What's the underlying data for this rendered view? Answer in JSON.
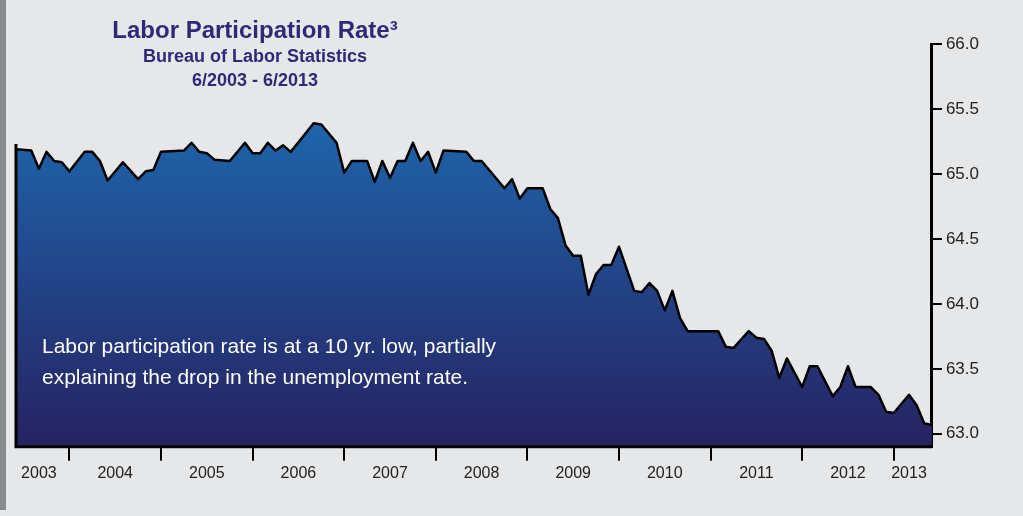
{
  "chart_data": {
    "type": "area",
    "title": "Labor Participation Rate³",
    "subtitle": "Bureau of Labor Statistics\n6/2003 - 6/2013",
    "annotations": [
      "Labor participation rate is at a 10 yr. low, partially explaining the drop in the unemployment rate."
    ],
    "x": [
      "2003-06",
      "2003-08",
      "2003-09",
      "2003-10",
      "2003-11",
      "2003-12",
      "2004-01",
      "2004-03",
      "2004-04",
      "2004-05",
      "2004-06",
      "2004-08",
      "2004-10",
      "2004-11",
      "2004-12",
      "2005-01",
      "2005-04",
      "2005-05",
      "2005-06",
      "2005-07",
      "2005-08",
      "2005-10",
      "2005-12",
      "2006-01",
      "2006-02",
      "2006-03",
      "2006-04",
      "2006-05",
      "2006-06",
      "2006-09",
      "2006-10",
      "2006-12",
      "2007-01",
      "2007-02",
      "2007-04",
      "2007-05",
      "2007-06",
      "2007-07",
      "2007-08",
      "2007-09",
      "2007-10",
      "2007-11",
      "2007-12",
      "2008-01",
      "2008-02",
      "2008-05",
      "2008-06",
      "2008-07",
      "2008-10",
      "2008-11",
      "2008-12",
      "2009-01",
      "2009-03",
      "2009-04",
      "2009-05",
      "2009-06",
      "2009-07",
      "2009-08",
      "2009-09",
      "2009-10",
      "2009-11",
      "2009-12",
      "2010-01",
      "2010-02",
      "2010-03",
      "2010-04",
      "2010-05",
      "2010-06",
      "2010-07",
      "2010-08",
      "2010-09",
      "2010-10",
      "2011-02",
      "2011-03",
      "2011-04",
      "2011-06",
      "2011-07",
      "2011-08",
      "2011-09",
      "2011-10",
      "2011-11",
      "2012-01",
      "2012-02",
      "2012-03",
      "2012-05",
      "2012-06",
      "2012-07",
      "2012-08",
      "2012-10",
      "2012-11",
      "2012-12",
      "2013-01",
      "2013-03",
      "2013-04",
      "2013-05",
      "2013-06"
    ],
    "series": [
      {
        "color": "#1c75bc",
        "values": [
          65.19,
          65.18,
          65.04,
          65.17,
          65.1,
          65.09,
          65.02,
          65.17,
          65.17,
          65.1,
          64.95,
          65.09,
          64.96,
          65.02,
          65.03,
          65.17,
          65.18,
          65.24,
          65.17,
          65.16,
          65.11,
          65.1,
          65.24,
          65.16,
          65.16,
          65.24,
          65.18,
          65.22,
          65.17,
          65.39,
          65.38,
          65.24,
          65.01,
          65.1,
          65.1,
          64.94,
          65.1,
          64.97,
          65.1,
          65.1,
          65.24,
          65.1,
          65.17,
          65.01,
          65.18,
          65.17,
          65.1,
          65.1,
          64.89,
          64.96,
          64.81,
          64.89,
          64.89,
          64.73,
          64.66,
          64.45,
          64.37,
          64.37,
          64.07,
          64.23,
          64.3,
          64.3,
          64.44,
          64.27,
          64.1,
          64.09,
          64.16,
          64.1,
          63.95,
          64.1,
          63.89,
          63.79,
          63.79,
          63.67,
          63.66,
          63.79,
          63.74,
          63.73,
          63.64,
          63.43,
          63.58,
          63.36,
          63.52,
          63.52,
          63.29,
          63.36,
          63.52,
          63.36,
          63.36,
          63.3,
          63.17,
          63.16,
          63.3,
          63.22,
          63.08,
          63.07
        ]
      }
    ],
    "xlim": [
      "2003-06",
      "2013-06"
    ],
    "xticks": [
      {
        "value": "2003-09",
        "label": "2003"
      },
      {
        "value": "2004-01",
        "label": null
      },
      {
        "value": "2004-07",
        "label": "2004"
      },
      {
        "value": "2005-01",
        "label": null
      },
      {
        "value": "2005-07",
        "label": "2005"
      },
      {
        "value": "2006-01",
        "label": null
      },
      {
        "value": "2006-07",
        "label": "2006"
      },
      {
        "value": "2007-01",
        "label": null
      },
      {
        "value": "2007-07",
        "label": "2007"
      },
      {
        "value": "2008-01",
        "label": null
      },
      {
        "value": "2008-07",
        "label": "2008"
      },
      {
        "value": "2009-01",
        "label": null
      },
      {
        "value": "2009-07",
        "label": "2009"
      },
      {
        "value": "2010-01",
        "label": null
      },
      {
        "value": "2010-07",
        "label": "2010"
      },
      {
        "value": "2011-01",
        "label": null
      },
      {
        "value": "2011-07",
        "label": "2011"
      },
      {
        "value": "2012-01",
        "label": null
      },
      {
        "value": "2012-07",
        "label": "2012"
      },
      {
        "value": "2013-01",
        "label": null
      },
      {
        "value": "2013-03",
        "label": "2013"
      }
    ],
    "ylim": [
      62.9,
      66.0
    ],
    "yticks": [
      {
        "value": 63,
        "label": "63.0"
      },
      {
        "value": 63.5,
        "label": "63.5"
      },
      {
        "value": 64,
        "label": "64.0"
      },
      {
        "value": 64.5,
        "label": "64.5"
      },
      {
        "value": 65,
        "label": "65.0"
      },
      {
        "value": 65.5,
        "label": "65.5"
      },
      {
        "value": 66,
        "label": "66.0"
      }
    ]
  }
}
